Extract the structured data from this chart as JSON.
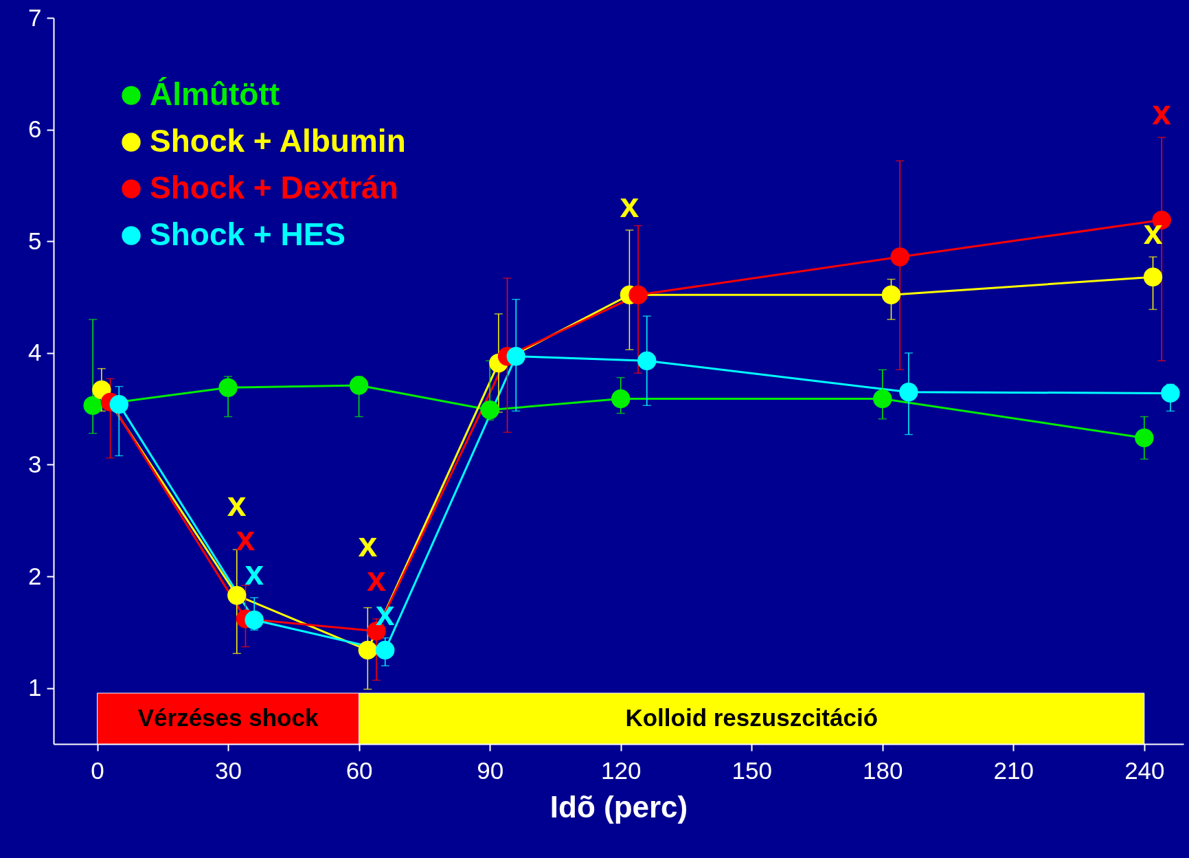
{
  "chart_data": {
    "type": "line",
    "xlabel": "Idõ (perc)",
    "xlim": [
      -10,
      249
    ],
    "ylim": [
      0.5,
      7
    ],
    "xticks": [
      0,
      30,
      60,
      90,
      120,
      150,
      180,
      210,
      240
    ],
    "yticks": [
      1,
      2,
      3,
      4,
      5,
      6,
      7
    ],
    "grid": false,
    "legend": "top left",
    "marker": "circle",
    "line_style": "solid",
    "series": [
      {
        "name": "Álmûtött",
        "color": "#00ee00",
        "x": [
          -1,
          30,
          60,
          90,
          120,
          180,
          240
        ],
        "values": [
          3.53,
          3.69,
          3.71,
          3.49,
          3.59,
          3.59,
          3.24
        ],
        "errors": [
          [
            3.28,
            4.3
          ],
          [
            3.43,
            3.79
          ],
          [
            3.43,
            3.79
          ],
          [
            3.4,
            3.93
          ],
          [
            3.46,
            3.78
          ],
          [
            3.41,
            3.85
          ],
          [
            3.05,
            3.43
          ]
        ]
      },
      {
        "name": "Shock + Albumin",
        "color": "#ffff00",
        "x": [
          1,
          32,
          62,
          92,
          122,
          182,
          242
        ],
        "values": [
          3.67,
          1.83,
          1.34,
          3.91,
          4.52,
          4.52,
          4.68
        ],
        "errors": [
          [
            3.48,
            3.86
          ],
          [
            1.31,
            2.24
          ],
          [
            0.99,
            1.72
          ],
          [
            3.47,
            4.35
          ],
          [
            4.03,
            5.1
          ],
          [
            4.3,
            4.66
          ],
          [
            4.39,
            4.86
          ]
        ]
      },
      {
        "name": "Shock + Dextrán",
        "color": "#ff0000",
        "x": [
          3,
          34,
          64,
          94,
          124,
          184,
          244
        ],
        "values": [
          3.56,
          1.62,
          1.51,
          3.97,
          4.52,
          4.86,
          5.19
        ],
        "errors": [
          [
            3.06,
            3.77
          ],
          [
            1.37,
            1.92
          ],
          [
            1.07,
            1.62
          ],
          [
            3.29,
            4.67
          ],
          [
            3.82,
            5.14
          ],
          [
            3.85,
            5.72
          ],
          [
            3.93,
            5.93
          ]
        ]
      },
      {
        "name": "Shock + HES",
        "color": "#00ffff",
        "x": [
          5,
          36,
          66,
          96,
          126,
          186,
          246
        ],
        "values": [
          3.54,
          1.61,
          1.34,
          3.97,
          3.93,
          3.65,
          3.64
        ],
        "errors": [
          [
            3.08,
            3.7
          ],
          [
            1.52,
            1.81
          ],
          [
            1.2,
            1.45
          ],
          [
            3.48,
            4.48
          ],
          [
            3.53,
            4.33
          ],
          [
            3.27,
            4.0
          ],
          [
            3.48,
            3.72
          ]
        ]
      }
    ],
    "bands": [
      {
        "axis": "x",
        "from": 0,
        "to": 60,
        "label": "Vérzéses shock",
        "color": "#ff0000"
      },
      {
        "axis": "x",
        "from": 60,
        "to": 240,
        "label": "Kolloid reszuszcitáció",
        "color": "#ffff00"
      }
    ],
    "annotations": [
      {
        "text": "x",
        "x": 34,
        "y": 1.62
      },
      {
        "text": "x",
        "x": 32,
        "y": 1.83
      },
      {
        "text": "x",
        "x": 36,
        "y": 1.61
      },
      {
        "text": "x",
        "x": 66,
        "y": 1.34
      },
      {
        "text": "x",
        "x": 64,
        "y": 1.51
      },
      {
        "text": "x",
        "x": 62,
        "y": 1.34
      },
      {
        "text": "x",
        "x": 122,
        "y": 4.52
      },
      {
        "text": "x",
        "x": 244,
        "y": 5.19
      },
      {
        "text": "x",
        "x": 242,
        "y": 4.68
      }
    ]
  }
}
